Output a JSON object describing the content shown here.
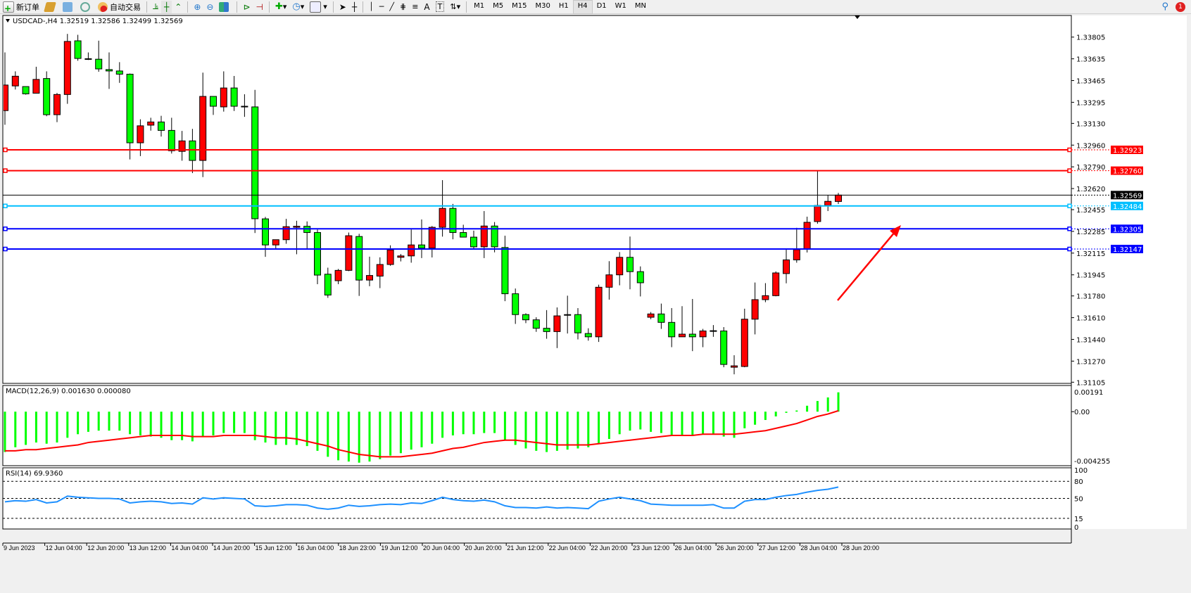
{
  "toolbar": {
    "new_order": "新订单",
    "auto_trade": "自动交易",
    "timeframes": [
      "M1",
      "M5",
      "M15",
      "M30",
      "H1",
      "H4",
      "D1",
      "W1",
      "MN"
    ],
    "active_timeframe": "H4",
    "notification_count": "1",
    "icons": [
      "new-order-icon",
      "history-icon",
      "terminal-icon",
      "signal-icon",
      "auto-trade-icon",
      "bar-chart-icon",
      "candle-chart-icon",
      "line-chart-icon",
      "zoom-in-icon",
      "zoom-out-icon",
      "tile-windows-icon",
      "autoscroll-icon",
      "chart-shift-icon",
      "indicators-icon",
      "periods-icon",
      "templates-icon",
      "cursor-icon",
      "crosshair-icon",
      "vertical-line-icon",
      "horizontal-line-icon",
      "trendline-icon",
      "fibonacci-icon",
      "fibo-channel-icon",
      "text-icon",
      "text-label-icon",
      "arrows-icon",
      "search-icon",
      "notification-icon"
    ]
  },
  "chart": {
    "header": "USDCAD-,H4  1.32519 1.32586 1.32499 1.32569",
    "colors": {
      "bull": "#ff0000",
      "bear": "#00ff00",
      "macd_hist": "#00ff00",
      "signal": "#ff0000",
      "rsi": "#1e90ff"
    }
  },
  "chart_data": [
    {
      "type": "candlestick",
      "symbol": "USDCAD-",
      "timeframe": "H4",
      "ylim": [
        1.31105,
        1.33805
      ],
      "y_ticks": [
        "1.33805",
        "1.33635",
        "1.33465",
        "1.33295",
        "1.33130",
        "1.32960",
        "1.32790",
        "1.32620",
        "1.32455",
        "1.32285",
        "1.32115",
        "1.31945",
        "1.31780",
        "1.31610",
        "1.31440",
        "1.31270",
        "1.31105"
      ],
      "x_ticks": [
        "9 Jun 2023",
        "12 Jun 04:00",
        "12 Jun 20:00",
        "13 Jun 12:00",
        "14 Jun 04:00",
        "14 Jun 20:00",
        "15 Jun 12:00",
        "16 Jun 04:00",
        "18 Jun 23:00",
        "19 Jun 12:00",
        "20 Jun 04:00",
        "20 Jun 20:00",
        "21 Jun 12:00",
        "22 Jun 04:00",
        "22 Jun 20:00",
        "23 Jun 12:00",
        "26 Jun 04:00",
        "26 Jun 20:00",
        "27 Jun 12:00",
        "28 Jun 04:00",
        "28 Jun 20:00"
      ],
      "ohlc": [
        [
          1.3323,
          1.33685,
          1.33119,
          1.3343
        ],
        [
          1.33423,
          1.33537,
          1.33395,
          1.33499
        ],
        [
          1.33418,
          1.33418,
          1.33355,
          1.33361
        ],
        [
          1.33366,
          1.33573,
          1.33366,
          1.33474
        ],
        [
          1.33481,
          1.33537,
          1.33186,
          1.33198
        ],
        [
          1.33198,
          1.33368,
          1.3314,
          1.33356
        ],
        [
          1.33356,
          1.3383,
          1.33283,
          1.33771
        ],
        [
          1.33776,
          1.33823,
          1.3362,
          1.33638
        ],
        [
          1.33636,
          1.33685,
          1.33626,
          1.33632
        ],
        [
          1.33632,
          1.33777,
          1.33534,
          1.33556
        ],
        [
          1.33551,
          1.33685,
          1.334,
          1.3354
        ],
        [
          1.3354,
          1.33609,
          1.33447,
          1.33515
        ],
        [
          1.33515,
          1.3352,
          1.32848,
          1.32978
        ],
        [
          1.32978,
          1.33162,
          1.32874,
          1.33111
        ],
        [
          1.33116,
          1.33174,
          1.33073,
          1.33141
        ],
        [
          1.33141,
          1.33189,
          1.33027,
          1.33075
        ],
        [
          1.33075,
          1.33174,
          1.32894,
          1.32916
        ],
        [
          1.32911,
          1.33071,
          1.32838,
          1.32993
        ],
        [
          1.32993,
          1.33087,
          1.32741,
          1.3284
        ],
        [
          1.3284,
          1.33527,
          1.3271,
          1.33341
        ],
        [
          1.33341,
          1.33341,
          1.33196,
          1.33264
        ],
        [
          1.33259,
          1.33537,
          1.33222,
          1.33407
        ],
        [
          1.33407,
          1.33501,
          1.33227,
          1.33264
        ],
        [
          1.33264,
          1.33358,
          1.33181,
          1.3326
        ],
        [
          1.33259,
          1.33392,
          1.32272,
          1.32384
        ],
        [
          1.32383,
          1.32398,
          1.32086,
          1.32179
        ],
        [
          1.32179,
          1.3222,
          1.32152,
          1.3222
        ],
        [
          1.3222,
          1.32383,
          1.32188,
          1.32322
        ],
        [
          1.32317,
          1.32368,
          1.32106,
          1.32325
        ],
        [
          1.32325,
          1.32363,
          1.32147,
          1.32276
        ],
        [
          1.32276,
          1.323,
          1.31872,
          1.31943
        ],
        [
          1.3195,
          1.32001,
          1.31765,
          1.31787
        ],
        [
          1.31899,
          1.31991,
          1.31872,
          1.3198
        ],
        [
          1.3198,
          1.32276,
          1.31974,
          1.32251
        ],
        [
          1.32245,
          1.32266,
          1.3178,
          1.31904
        ],
        [
          1.31904,
          1.32087,
          1.31856,
          1.3194
        ],
        [
          1.31935,
          1.32082,
          1.31841,
          1.32026
        ],
        [
          1.32026,
          1.32176,
          1.32016,
          1.3214
        ],
        [
          1.32082,
          1.32108,
          1.3205,
          1.32093
        ],
        [
          1.32093,
          1.323,
          1.3204,
          1.32179
        ],
        [
          1.32179,
          1.32378,
          1.32076,
          1.32154
        ],
        [
          1.32154,
          1.32327,
          1.32081,
          1.32317
        ],
        [
          1.32317,
          1.32686,
          1.32244,
          1.32465
        ],
        [
          1.32465,
          1.325,
          1.32223,
          1.32276
        ],
        [
          1.32276,
          1.32337,
          1.3224,
          1.3224
        ],
        [
          1.3224,
          1.32291,
          1.32152,
          1.32164
        ],
        [
          1.32164,
          1.32444,
          1.32076,
          1.32327
        ],
        [
          1.32327,
          1.32358,
          1.32121,
          1.32164
        ],
        [
          1.32159,
          1.32251,
          1.31739,
          1.31797
        ],
        [
          1.31797,
          1.31838,
          1.31561,
          1.31634
        ],
        [
          1.31634,
          1.31644,
          1.31567,
          1.31593
        ],
        [
          1.31593,
          1.31613,
          1.31499,
          1.31527
        ],
        [
          1.31527,
          1.31669,
          1.31445,
          1.31501
        ],
        [
          1.31501,
          1.3169,
          1.31372,
          1.31624
        ],
        [
          1.31634,
          1.31782,
          1.31486,
          1.3163
        ],
        [
          1.31634,
          1.31685,
          1.3144,
          1.31491
        ],
        [
          1.31486,
          1.31527,
          1.3143,
          1.3146
        ],
        [
          1.3146,
          1.31868,
          1.3142,
          1.31848
        ],
        [
          1.31848,
          1.32052,
          1.31751,
          1.31945
        ],
        [
          1.31945,
          1.32123,
          1.31863,
          1.32082
        ],
        [
          1.32082,
          1.32245,
          1.31832,
          1.3197
        ],
        [
          1.3197,
          1.32011,
          1.31776,
          1.31883
        ],
        [
          1.31613,
          1.31654,
          1.31598,
          1.31639
        ],
        [
          1.31639,
          1.3172,
          1.31522,
          1.31573
        ],
        [
          1.31573,
          1.31685,
          1.31379,
          1.3146
        ],
        [
          1.3146,
          1.317,
          1.3146,
          1.31481
        ],
        [
          1.31481,
          1.31756,
          1.31348,
          1.3146
        ],
        [
          1.3146,
          1.31522,
          1.31379,
          1.31506
        ],
        [
          1.31508,
          1.31552,
          1.3146,
          1.31504
        ],
        [
          1.31506,
          1.31536,
          1.31222,
          1.31244
        ],
        [
          1.31222,
          1.31316,
          1.31167,
          1.31233
        ],
        [
          1.31228,
          1.3168,
          1.31222,
          1.31598
        ],
        [
          1.31598,
          1.31885,
          1.31479,
          1.31751
        ],
        [
          1.31751,
          1.3188,
          1.31731,
          1.31782
        ],
        [
          1.31782,
          1.31972,
          1.31777,
          1.3196
        ],
        [
          1.31955,
          1.32142,
          1.31879,
          1.32062
        ],
        [
          1.32062,
          1.32313,
          1.3204,
          1.32142
        ],
        [
          1.32147,
          1.324,
          1.3212,
          1.32356
        ],
        [
          1.32362,
          1.3276,
          1.32345,
          1.32488
        ],
        [
          1.32488,
          1.3257,
          1.32444,
          1.3252
        ],
        [
          1.32519,
          1.32586,
          1.32499,
          1.32569
        ]
      ],
      "levels": [
        {
          "price": "1.32923",
          "color": "#ff0000"
        },
        {
          "price": "1.32760",
          "color": "#ff0000"
        },
        {
          "price": "1.32484",
          "color": "#00bfff"
        },
        {
          "price": "1.32305",
          "color": "#0000ff"
        },
        {
          "price": "1.32147",
          "color": "#0000ff"
        }
      ],
      "current_price": "1.32569",
      "annotation": {
        "type": "arrow",
        "color": "#ff0000",
        "from": [
          1.31715,
          "27 Jun 04:00"
        ],
        "to": [
          1.32305,
          "28 Jun 20:00+"
        ]
      }
    },
    {
      "type": "bar+line",
      "label": "MACD(12,26,9) 0.001630 0.000080",
      "ylim": [
        -0.004255,
        0.00191
      ],
      "y_ticks": [
        "0.00191",
        "0.00",
        "-0.004255"
      ],
      "macd": [
        -0.0034,
        -0.003,
        -0.0028,
        -0.0026,
        -0.0027,
        -0.0026,
        -0.0022,
        -0.0019,
        -0.0017,
        -0.0016,
        -0.0016,
        -0.0016,
        -0.0019,
        -0.002,
        -0.0021,
        -0.0022,
        -0.0024,
        -0.0024,
        -0.0025,
        -0.0021,
        -0.002,
        -0.0018,
        -0.0018,
        -0.0018,
        -0.0024,
        -0.0026,
        -0.0028,
        -0.0028,
        -0.0028,
        -0.0029,
        -0.0033,
        -0.0038,
        -0.0041,
        -0.0042,
        -0.0043,
        -0.0042,
        -0.004,
        -0.0037,
        -0.0035,
        -0.0032,
        -0.003,
        -0.0027,
        -0.0022,
        -0.002,
        -0.0019,
        -0.0019,
        -0.0018,
        -0.0018,
        -0.0024,
        -0.0028,
        -0.0031,
        -0.0033,
        -0.0034,
        -0.0033,
        -0.0032,
        -0.0031,
        -0.003,
        -0.0027,
        -0.0023,
        -0.0019,
        -0.0016,
        -0.0015,
        -0.0017,
        -0.0018,
        -0.002,
        -0.002,
        -0.002,
        -0.0019,
        -0.0019,
        -0.0021,
        -0.0022,
        -0.0014,
        -0.0011,
        -0.0007,
        -0.0004,
        -0.0001,
        0.0001,
        0.0005,
        0.0009,
        0.0012,
        0.00163
      ],
      "signal": [
        -0.0033,
        -0.0033,
        -0.0032,
        -0.0032,
        -0.0031,
        -0.003,
        -0.0029,
        -0.0028,
        -0.0026,
        -0.0025,
        -0.0024,
        -0.0023,
        -0.0022,
        -0.0021,
        -0.002,
        -0.002,
        -0.002,
        -0.002,
        -0.0021,
        -0.0021,
        -0.0021,
        -0.002,
        -0.002,
        -0.002,
        -0.002,
        -0.0021,
        -0.0022,
        -0.0022,
        -0.0023,
        -0.0025,
        -0.0027,
        -0.0029,
        -0.0032,
        -0.0034,
        -0.0036,
        -0.0037,
        -0.0038,
        -0.0038,
        -0.0038,
        -0.0037,
        -0.0036,
        -0.0035,
        -0.0033,
        -0.0031,
        -0.003,
        -0.0028,
        -0.0026,
        -0.0025,
        -0.0024,
        -0.0024,
        -0.0025,
        -0.0026,
        -0.0027,
        -0.0028,
        -0.0028,
        -0.0028,
        -0.0028,
        -0.0027,
        -0.0026,
        -0.0025,
        -0.0024,
        -0.0023,
        -0.0022,
        -0.0021,
        -0.002,
        -0.002,
        -0.002,
        -0.0019,
        -0.0019,
        -0.0019,
        -0.0019,
        -0.0018,
        -0.0017,
        -0.0016,
        -0.0014,
        -0.0012,
        -0.001,
        -0.0007,
        -0.0004,
        -0.0002,
        8e-05
      ]
    },
    {
      "type": "line",
      "label": "RSI(14) 69.9360",
      "ylim": [
        0,
        100
      ],
      "y_ticks": [
        "100",
        "80",
        "50",
        "15",
        "0"
      ],
      "levels": [
        80,
        50,
        15
      ],
      "rsi": [
        44,
        46,
        45,
        48,
        42,
        44,
        54,
        52,
        51,
        50,
        50,
        49,
        42,
        44,
        45,
        44,
        41,
        42,
        40,
        51,
        49,
        51,
        50,
        49,
        37,
        36,
        37,
        39,
        39,
        38,
        33,
        31,
        33,
        38,
        36,
        37,
        39,
        40,
        39,
        42,
        41,
        46,
        52,
        48,
        46,
        45,
        47,
        44,
        37,
        34,
        34,
        33,
        35,
        33,
        34,
        33,
        32,
        45,
        49,
        52,
        49,
        46,
        40,
        39,
        38,
        38,
        38,
        38,
        39,
        33,
        33,
        45,
        48,
        48,
        52,
        55,
        57,
        61,
        64,
        66,
        69.936
      ]
    }
  ]
}
